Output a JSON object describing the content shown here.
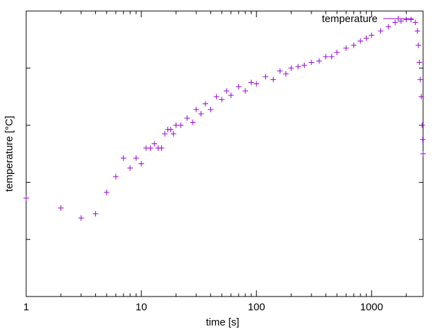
{
  "chart_data": {
    "type": "scatter",
    "title": "",
    "xlabel": "time [s]",
    "ylabel": "temperature [°C]",
    "x_scale": "log",
    "xlim": [
      1,
      2800
    ],
    "ylim": [
      0,
      1
    ],
    "grid": false,
    "legend_position": "top-right",
    "x_ticks": [
      1,
      10,
      100,
      1000
    ],
    "x_tick_labels": [
      "1",
      "10",
      "100",
      "1000"
    ],
    "y_ticks": [
      0.2,
      0.4,
      0.6,
      0.8
    ],
    "marker": "plus",
    "series": [
      {
        "name": "temperature",
        "color": "#9400d3",
        "points": [
          [
            1,
            0.345
          ],
          [
            2,
            0.31
          ],
          [
            3,
            0.275
          ],
          [
            4,
            0.29
          ],
          [
            5,
            0.365
          ],
          [
            6,
            0.42
          ],
          [
            7,
            0.485
          ],
          [
            8,
            0.45
          ],
          [
            9,
            0.485
          ],
          [
            10,
            0.465
          ],
          [
            11,
            0.52
          ],
          [
            12,
            0.52
          ],
          [
            13,
            0.535
          ],
          [
            14,
            0.52
          ],
          [
            15,
            0.52
          ],
          [
            16,
            0.57
          ],
          [
            17,
            0.585
          ],
          [
            18,
            0.585
          ],
          [
            19,
            0.57
          ],
          [
            20,
            0.6
          ],
          [
            22,
            0.6
          ],
          [
            25,
            0.625
          ],
          [
            28,
            0.61
          ],
          [
            30,
            0.655
          ],
          [
            33,
            0.64
          ],
          [
            36,
            0.675
          ],
          [
            40,
            0.655
          ],
          [
            45,
            0.7
          ],
          [
            50,
            0.69
          ],
          [
            55,
            0.72
          ],
          [
            60,
            0.705
          ],
          [
            70,
            0.735
          ],
          [
            80,
            0.72
          ],
          [
            90,
            0.75
          ],
          [
            100,
            0.745
          ],
          [
            120,
            0.77
          ],
          [
            140,
            0.76
          ],
          [
            160,
            0.79
          ],
          [
            180,
            0.78
          ],
          [
            200,
            0.8
          ],
          [
            230,
            0.805
          ],
          [
            260,
            0.81
          ],
          [
            300,
            0.82
          ],
          [
            350,
            0.825
          ],
          [
            400,
            0.84
          ],
          [
            450,
            0.84
          ],
          [
            500,
            0.855
          ],
          [
            600,
            0.87
          ],
          [
            700,
            0.88
          ],
          [
            800,
            0.895
          ],
          [
            900,
            0.905
          ],
          [
            1000,
            0.915
          ],
          [
            1200,
            0.93
          ],
          [
            1400,
            0.945
          ],
          [
            1600,
            0.96
          ],
          [
            1800,
            0.965
          ],
          [
            2000,
            0.97
          ],
          [
            2200,
            0.97
          ],
          [
            2400,
            0.96
          ],
          [
            2500,
            0.93
          ],
          [
            2550,
            0.88
          ],
          [
            2600,
            0.82
          ],
          [
            2650,
            0.76
          ],
          [
            2700,
            0.7
          ],
          [
            2750,
            0.6
          ],
          [
            2780,
            0.55
          ],
          [
            2800,
            0.5
          ]
        ]
      }
    ]
  }
}
